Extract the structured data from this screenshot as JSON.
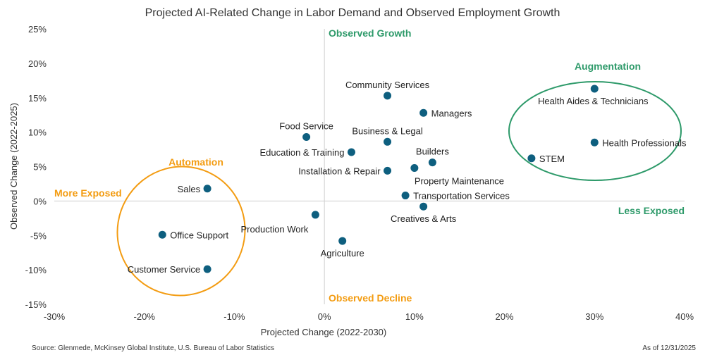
{
  "chart_data": {
    "type": "scatter",
    "title": "Projected AI-Related Change in Labor Demand and Observed Employment Growth",
    "xlabel": "Projected Change (2022-2030)",
    "ylabel": "Observed Change (2022-2025)",
    "xlim": [
      -30,
      40
    ],
    "ylim": [
      -15,
      25
    ],
    "x_ticks": [
      -30,
      -20,
      -10,
      0,
      10,
      20,
      30,
      40
    ],
    "y_ticks": [
      -15,
      -10,
      -5,
      0,
      5,
      10,
      15,
      20,
      25
    ],
    "x_tick_labels": [
      "-30%",
      "-20%",
      "-10%",
      "0%",
      "10%",
      "20%",
      "30%",
      "40%"
    ],
    "y_tick_labels": [
      "-15%",
      "-10%",
      "-5%",
      "0%",
      "5%",
      "10%",
      "15%",
      "20%",
      "25%"
    ],
    "grid": false,
    "point_color": "#0e5f7f",
    "points": [
      {
        "label": "Sales",
        "x": -13,
        "y": 1.8
      },
      {
        "label": "Office Support",
        "x": -18,
        "y": -4.9
      },
      {
        "label": "Customer Service",
        "x": -13,
        "y": -9.9
      },
      {
        "label": "Food Service",
        "x": -2,
        "y": 9.3
      },
      {
        "label": "Education & Training",
        "x": 3,
        "y": 7.1
      },
      {
        "label": "Community Services",
        "x": 7,
        "y": 15.3
      },
      {
        "label": "Managers",
        "x": 11,
        "y": 12.8
      },
      {
        "label": "Business & Legal",
        "x": 7,
        "y": 8.6
      },
      {
        "label": "Builders",
        "x": 12,
        "y": 5.6
      },
      {
        "label": "Installation & Repair",
        "x": 7,
        "y": 4.4
      },
      {
        "label": "Property Maintenance",
        "x": 10,
        "y": 4.8
      },
      {
        "label": "Transportation Services",
        "x": 9,
        "y": 0.8
      },
      {
        "label": "Creatives & Arts",
        "x": 11,
        "y": -0.8
      },
      {
        "label": "Production Work",
        "x": -1,
        "y": -2.0
      },
      {
        "label": "Agriculture",
        "x": 2,
        "y": -5.8
      },
      {
        "label": "Health Aides & Technicians",
        "x": 30,
        "y": 16.3
      },
      {
        "label": "Health Professionals",
        "x": 30,
        "y": 8.5
      },
      {
        "label": "STEM",
        "x": 23,
        "y": 6.2
      }
    ],
    "annotations": {
      "observed_growth": "Observed Growth",
      "observed_decline": "Observed Decline",
      "more_exposed": "More Exposed",
      "less_exposed": "Less Exposed",
      "automation": "Automation",
      "augmentation": "Augmentation"
    },
    "colors": {
      "green": "#2e9a6a",
      "orange": "#f39c12",
      "axis": "#cfcfcf"
    }
  },
  "footer": {
    "source": "Source: Glenmede, McKinsey Global Institute, U.S. Bureau of Labor Statistics",
    "asof": "As of 12/31/2025"
  }
}
